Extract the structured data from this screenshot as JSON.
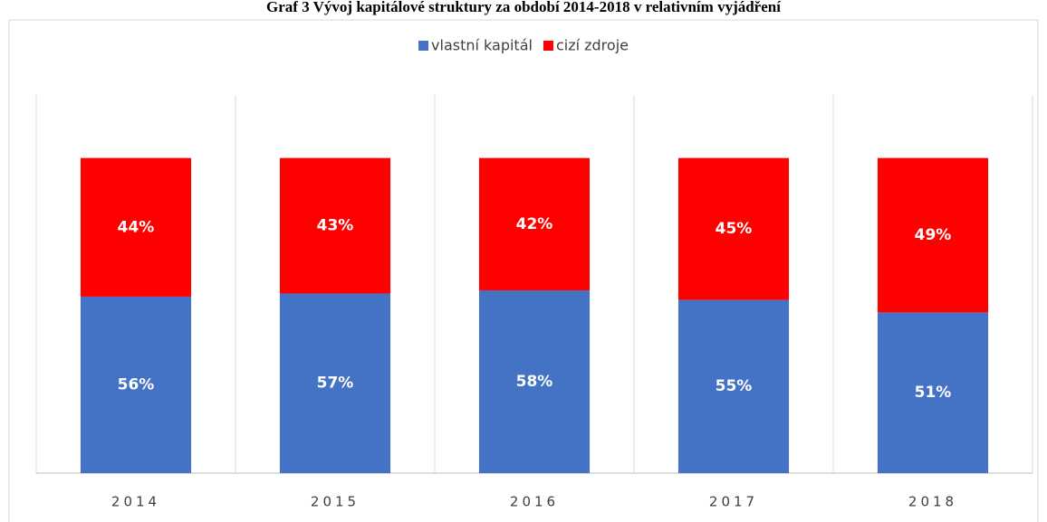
{
  "chart_data": {
    "type": "stacked_bar",
    "title": "Graf 3 Vývoj kapitálové struktury za období 2014-2018 v relativním vyjádření",
    "categories": [
      "2014",
      "2015",
      "2016",
      "2017",
      "2018"
    ],
    "series": [
      {
        "name": "vlastní kapitál",
        "color": "#4472c4",
        "values": [
          56,
          57,
          58,
          55,
          51
        ],
        "value_labels": [
          "56%",
          "57%",
          "58%",
          "55%",
          "51%"
        ]
      },
      {
        "name": "cizí zdroje",
        "color": "#ff0000",
        "values": [
          44,
          43,
          42,
          45,
          49
        ],
        "value_labels": [
          "44%",
          "43%",
          "42%",
          "45%",
          "49%"
        ]
      }
    ],
    "ylim": [
      0,
      120
    ],
    "legend": "top"
  }
}
